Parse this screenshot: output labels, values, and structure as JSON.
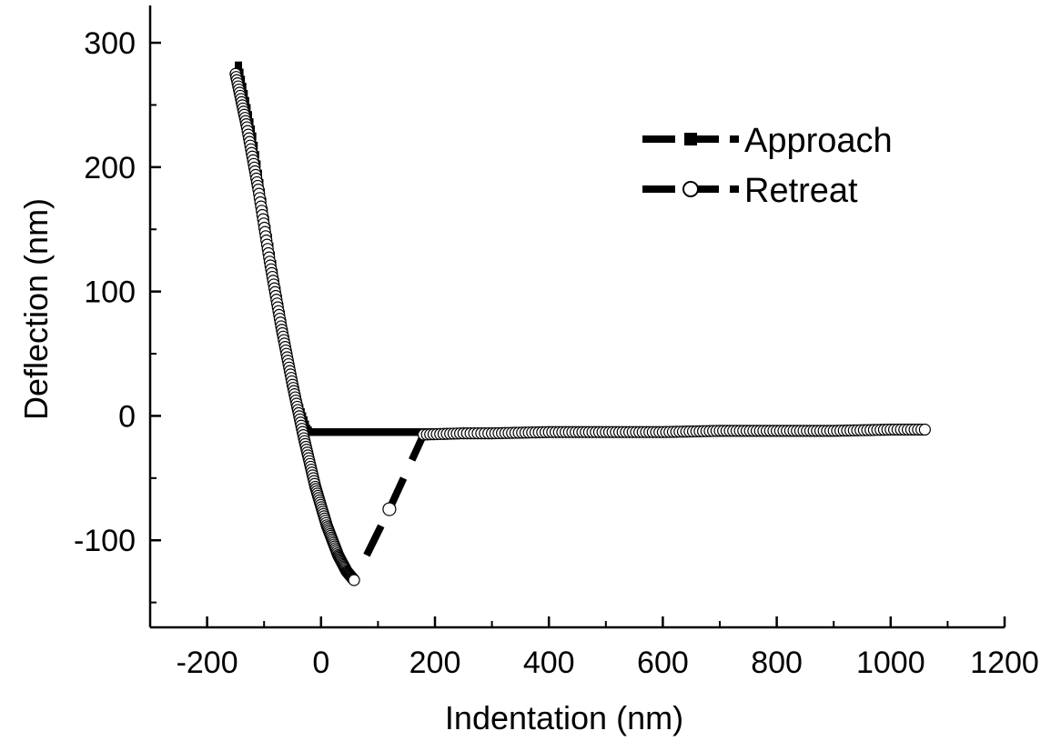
{
  "chart_data": {
    "type": "scatter",
    "title": "",
    "xlabel": "Indentation (nm)",
    "ylabel": "Deflection (nm)",
    "xlim": [
      -300,
      1200
    ],
    "ylim": [
      -170,
      330
    ],
    "x_ticks": [
      -200,
      0,
      200,
      400,
      600,
      800,
      1000,
      1200
    ],
    "x_tick_labels": [
      "-200",
      "0",
      "200",
      "400",
      "600",
      "800",
      "1000",
      "1200"
    ],
    "y_ticks": [
      -100,
      0,
      100,
      200,
      300
    ],
    "y_tick_labels": [
      "-100",
      "0",
      "100",
      "200",
      "300"
    ],
    "grid": false,
    "legend_position": "top-right",
    "series": [
      {
        "name": "Approach",
        "marker": "filled-square",
        "line": "dashed",
        "color": "#000000",
        "x": [
          -145,
          -120,
          -100,
          -80,
          -60,
          -40,
          -25,
          -20,
          0,
          100,
          200,
          300,
          400,
          500,
          560
        ],
        "y": [
          282,
          225,
          165,
          108,
          55,
          10,
          -10,
          -13,
          -13,
          -13,
          -13,
          -13,
          -13,
          -13,
          -13
        ]
      },
      {
        "name": "Retreat",
        "marker": "open-circle",
        "line": "dashed",
        "color": "#000000",
        "x": [
          -150,
          -130,
          -110,
          -90,
          -70,
          -50,
          -30,
          -10,
          10,
          30,
          45,
          58,
          120,
          180,
          250,
          300,
          400,
          500,
          600,
          700,
          800,
          900,
          1000,
          1060
        ],
        "y": [
          275,
          232,
          182,
          124,
          72,
          25,
          -18,
          -57,
          -88,
          -112,
          -125,
          -132,
          -75,
          -15,
          -14,
          -14,
          -13,
          -13,
          -13,
          -12,
          -12,
          -12,
          -11,
          -11
        ]
      }
    ]
  }
}
